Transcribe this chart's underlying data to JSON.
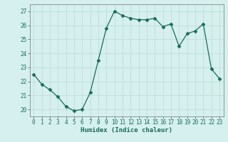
{
  "x": [
    0,
    1,
    2,
    3,
    4,
    5,
    6,
    7,
    8,
    9,
    10,
    11,
    12,
    13,
    14,
    15,
    16,
    17,
    18,
    19,
    20,
    21,
    22,
    23
  ],
  "y": [
    22.5,
    21.8,
    21.4,
    20.9,
    20.2,
    19.9,
    20.0,
    21.2,
    23.5,
    25.8,
    27.0,
    26.7,
    26.5,
    26.4,
    26.4,
    26.5,
    25.9,
    26.1,
    24.5,
    25.4,
    25.6,
    26.1,
    22.9,
    22.2
  ],
  "xlabel": "Humidex (Indice chaleur)",
  "xlim": [
    -0.5,
    23.5
  ],
  "ylim": [
    19.5,
    27.5
  ],
  "yticks": [
    20,
    21,
    22,
    23,
    24,
    25,
    26,
    27
  ],
  "xticks": [
    0,
    1,
    2,
    3,
    4,
    5,
    6,
    7,
    8,
    9,
    10,
    11,
    12,
    13,
    14,
    15,
    16,
    17,
    18,
    19,
    20,
    21,
    22,
    23
  ],
  "line_color": "#1a6b5a",
  "marker": "D",
  "marker_size": 2.5,
  "bg_color": "#d5f0ee",
  "grid_color": "#c0ddd8",
  "tick_color": "#1a6b5a",
  "label_color": "#1a6b5a",
  "spine_color": "#888888"
}
